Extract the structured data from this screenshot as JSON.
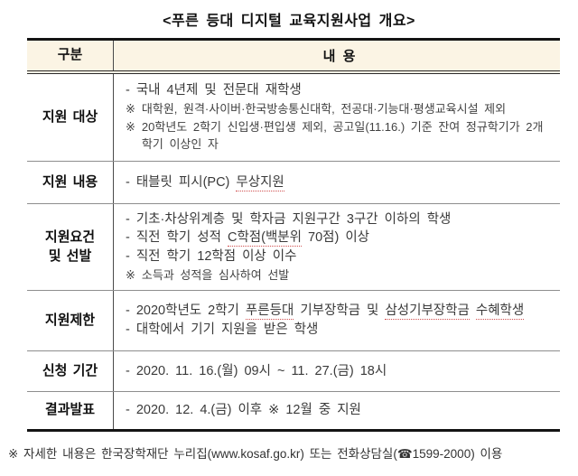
{
  "title": "<푸른 등대 디지털 교육지원사업 개요>",
  "table": {
    "header": {
      "col1": "구분",
      "col2": "내 용"
    },
    "rows": [
      {
        "label": [
          "지원 대상"
        ],
        "lines": [
          {
            "marker": "-",
            "segments": [
              {
                "text": "국내 4년제 및 전문대 재학생"
              }
            ]
          },
          {
            "marker": "※",
            "small": true,
            "segments": [
              {
                "text": "대학원, 원격·사이버·한국방송통신대학, 전공대·기능대·평생교육시설 제외"
              }
            ]
          },
          {
            "marker": "※",
            "small": true,
            "segments": [
              {
                "text": "20학년도 2학기 신입생·편입생 제외, 공고일(11.16.) 기준 잔여 정규학기가 2개 학기 이상인 자"
              }
            ]
          }
        ]
      },
      {
        "label": [
          "지원 내용"
        ],
        "lines": [
          {
            "marker": "-",
            "segments": [
              {
                "text": "태블릿 피시(PC) "
              },
              {
                "text": "무상지원",
                "underline": true
              }
            ]
          }
        ]
      },
      {
        "label": [
          "지원요건",
          "및 선발"
        ],
        "lines": [
          {
            "marker": "-",
            "segments": [
              {
                "text": "기초·차상위계층 및 학자금 지원구간 3구간 이하의 학생"
              }
            ]
          },
          {
            "marker": "-",
            "segments": [
              {
                "text": "직전 학기 성적 "
              },
              {
                "text": "C학점(백분위",
                "underline": true
              },
              {
                "text": " 70점) 이상"
              }
            ]
          },
          {
            "marker": "-",
            "segments": [
              {
                "text": "직전 학기 12학점 이상 이수"
              }
            ]
          },
          {
            "marker": "※",
            "small": true,
            "segments": [
              {
                "text": "소득과 성적을 심사하여 선발"
              }
            ]
          }
        ]
      },
      {
        "label": [
          "지원제한"
        ],
        "lines": [
          {
            "marker": "-",
            "segments": [
              {
                "text": "2020학년도 2학기 "
              },
              {
                "text": "푸른등대",
                "underline": true
              },
              {
                "text": " 기부장학금 및 "
              },
              {
                "text": "삼성기부장학금",
                "underline": true
              },
              {
                "text": " "
              },
              {
                "text": "수혜학생",
                "underline": true
              }
            ]
          },
          {
            "marker": "-",
            "segments": [
              {
                "text": "대학에서 기기 지원을 받은 학생"
              }
            ]
          }
        ]
      },
      {
        "label": [
          "신청 기간"
        ],
        "lines": [
          {
            "marker": "-",
            "segments": [
              {
                "text": "2020. 11. 16.(월) 09시 ~ 11. 27.(금) 18시"
              }
            ]
          }
        ]
      },
      {
        "label": [
          "결과발표"
        ],
        "lines": [
          {
            "marker": "-",
            "segments": [
              {
                "text": "2020. 12. 4.(금) 이후 ※ 12월 중 지원"
              }
            ]
          }
        ]
      }
    ]
  },
  "footer": "※ 자세한 내용은 한국장학재단 누리집(www.kosaf.go.kr) 또는 전화상담실(☎1599-2000) 이용",
  "colors": {
    "header_bg": "#fbf4e4",
    "border_dark": "#141414",
    "row_separator": "#8e8e8e",
    "text": "#3a3a3a",
    "spellcheck_underline": "#d05050"
  }
}
